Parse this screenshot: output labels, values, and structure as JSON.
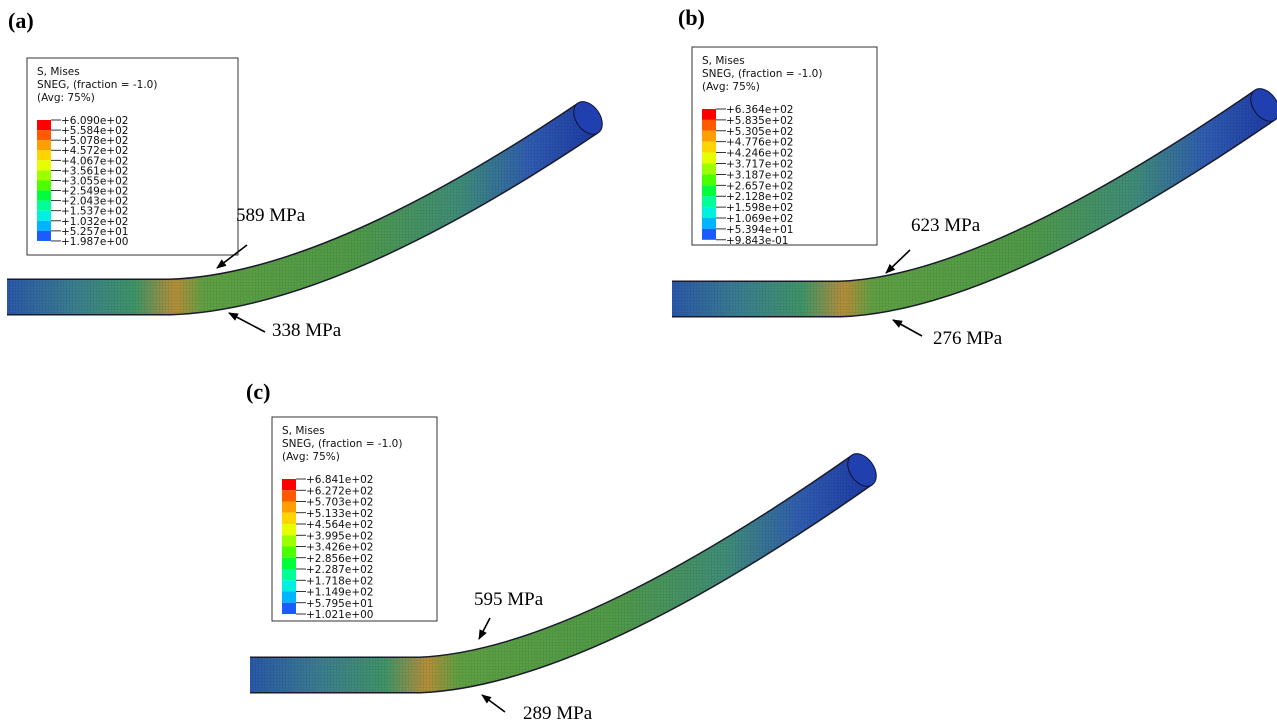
{
  "panels": [
    {
      "label": "(a)",
      "legend": {
        "title": [
          "S, Mises",
          "SNEG, (fraction = -1.0)",
          "(Avg: 75%)"
        ],
        "levels": [
          "+6.090e+02",
          "+5.584e+02",
          "+5.078e+02",
          "+4.572e+02",
          "+4.067e+02",
          "+3.561e+02",
          "+3.055e+02",
          "+2.549e+02",
          "+2.043e+02",
          "+1.537e+02",
          "+1.032e+02",
          "+5.257e+01",
          "+1.987e+00"
        ]
      },
      "annotations": [
        "589 MPa",
        "338 MPa"
      ]
    },
    {
      "label": "(b)",
      "legend": {
        "title": [
          "S, Mises",
          "SNEG, (fraction = -1.0)",
          "(Avg: 75%)"
        ],
        "levels": [
          "+6.364e+02",
          "+5.835e+02",
          "+5.305e+02",
          "+4.776e+02",
          "+4.246e+02",
          "+3.717e+02",
          "+3.187e+02",
          "+2.657e+02",
          "+2.128e+02",
          "+1.598e+02",
          "+1.069e+02",
          "+5.394e+01",
          "+9.843e-01"
        ]
      },
      "annotations": [
        "623 MPa",
        "276 MPa"
      ]
    },
    {
      "label": "(c)",
      "legend": {
        "title": [
          "S, Mises",
          "SNEG, (fraction = -1.0)",
          "(Avg: 75%)"
        ],
        "levels": [
          "+6.841e+02",
          "+6.272e+02",
          "+5.703e+02",
          "+5.133e+02",
          "+4.564e+02",
          "+3.995e+02",
          "+3.426e+02",
          "+2.856e+02",
          "+2.287e+02",
          "+1.718e+02",
          "+1.149e+02",
          "+5.795e+01",
          "+1.021e+00"
        ]
      },
      "annotations": [
        "595 MPa",
        "289 MPa"
      ]
    }
  ]
}
